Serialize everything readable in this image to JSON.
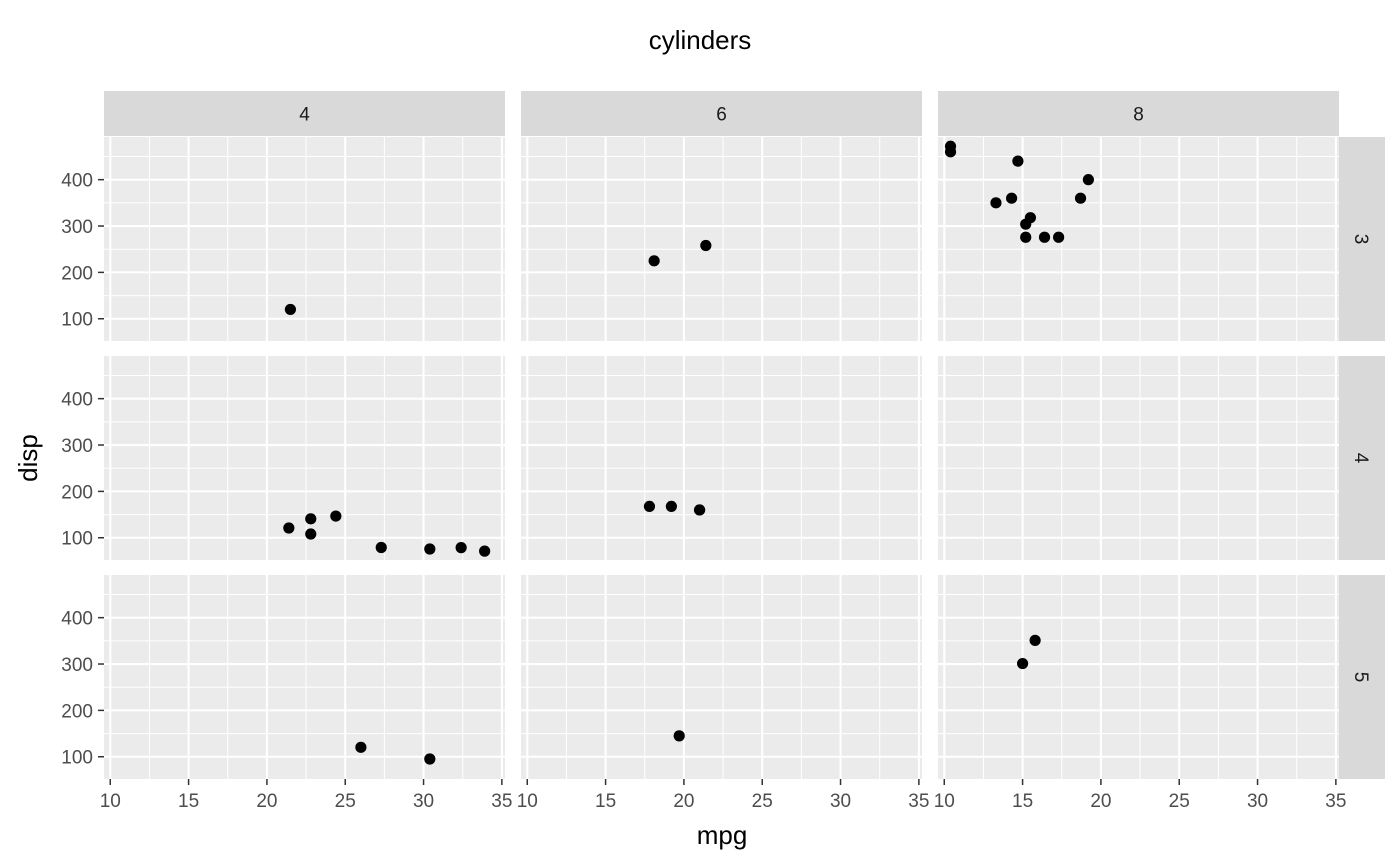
{
  "chart_data": {
    "type": "scatter",
    "title": "cylinders",
    "xlabel": "mpg",
    "ylabel": "disp",
    "xlim": [
      9.6,
      35.2
    ],
    "ylim": [
      52,
      492
    ],
    "x_ticks": [
      10,
      15,
      20,
      25,
      30,
      35
    ],
    "x_tick_labels": [
      "10",
      "15",
      "20",
      "25",
      "30",
      "35"
    ],
    "y_ticks": [
      100,
      200,
      300,
      400
    ],
    "y_tick_labels": [
      "100",
      "200",
      "300",
      "400"
    ],
    "column_facet_values": [
      "4",
      "6",
      "8"
    ],
    "row_facet_values": [
      "3",
      "4",
      "5"
    ],
    "grid": true,
    "legend": "none",
    "point_color": "#000000",
    "panel_background": "#ebebeb",
    "strip_background": "#d9d9d9",
    "panels": [
      {
        "col": "4",
        "row": "3",
        "points": [
          [
            21.5,
            120.1
          ]
        ]
      },
      {
        "col": "6",
        "row": "3",
        "points": [
          [
            21.4,
            258
          ],
          [
            18.1,
            225
          ]
        ]
      },
      {
        "col": "8",
        "row": "3",
        "points": [
          [
            18.7,
            360
          ],
          [
            14.3,
            360
          ],
          [
            16.4,
            275.8
          ],
          [
            17.3,
            275.8
          ],
          [
            15.2,
            275.8
          ],
          [
            10.4,
            472
          ],
          [
            10.4,
            460
          ],
          [
            14.7,
            440
          ],
          [
            15.5,
            318
          ],
          [
            15.2,
            304
          ],
          [
            13.3,
            350
          ],
          [
            19.2,
            400
          ]
        ]
      },
      {
        "col": "4",
        "row": "4",
        "points": [
          [
            22.8,
            108
          ],
          [
            24.4,
            146.7
          ],
          [
            22.8,
            140.8
          ],
          [
            32.4,
            78.7
          ],
          [
            30.4,
            75.7
          ],
          [
            33.9,
            71.1
          ],
          [
            27.3,
            79
          ],
          [
            21.4,
            121
          ]
        ]
      },
      {
        "col": "6",
        "row": "4",
        "points": [
          [
            21,
            160
          ],
          [
            21,
            160
          ],
          [
            19.2,
            167.6
          ],
          [
            17.8,
            167.6
          ]
        ]
      },
      {
        "col": "8",
        "row": "4",
        "points": []
      },
      {
        "col": "4",
        "row": "5",
        "points": [
          [
            26,
            120.3
          ],
          [
            30.4,
            95.1
          ]
        ]
      },
      {
        "col": "6",
        "row": "5",
        "points": [
          [
            19.7,
            145
          ]
        ]
      },
      {
        "col": "8",
        "row": "5",
        "points": [
          [
            15.8,
            351
          ],
          [
            15,
            301
          ]
        ]
      }
    ]
  }
}
